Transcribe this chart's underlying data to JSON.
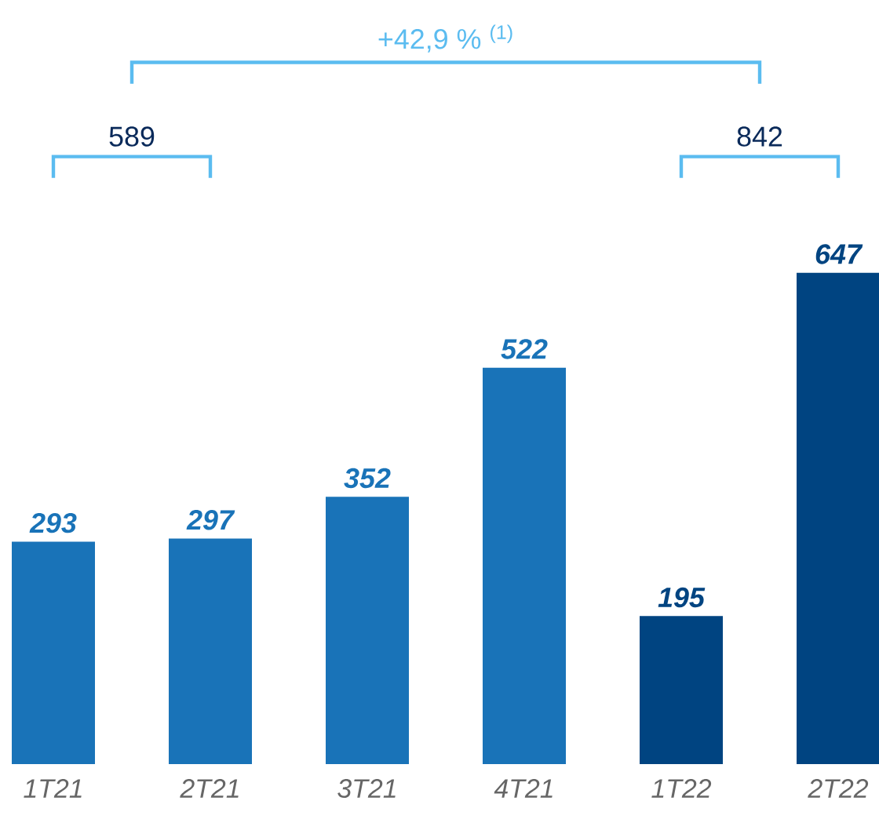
{
  "chart_data": {
    "type": "bar",
    "categories": [
      "1T21",
      "2T21",
      "3T21",
      "4T21",
      "1T22",
      "2T22"
    ],
    "values": [
      293,
      297,
      352,
      522,
      195,
      647
    ],
    "colors": [
      "#1973b8",
      "#1973b8",
      "#1973b8",
      "#1973b8",
      "#004481",
      "#004481"
    ],
    "data_labels": true,
    "annotations": [
      "589",
      "842",
      "+42,9 % $^{(1)}$"
    ]
  }
}
